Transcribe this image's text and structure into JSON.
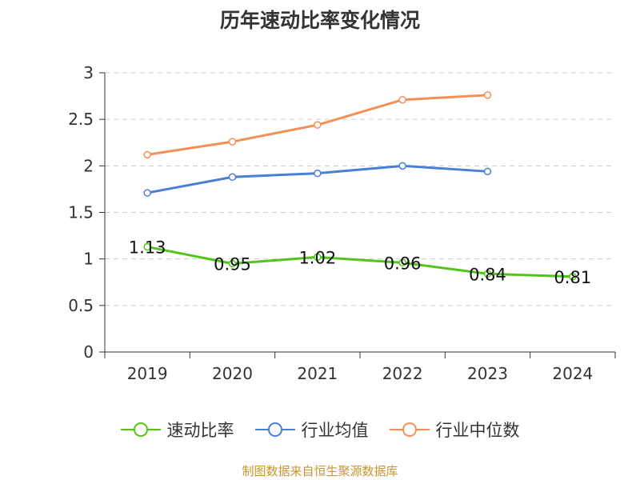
{
  "chart_data": {
    "type": "line",
    "title": "历年速动比率变化情况",
    "categories": [
      "2019",
      "2020",
      "2021",
      "2022",
      "2023",
      "2024"
    ],
    "ylim": [
      0,
      3
    ],
    "yticks": [
      "0",
      "0.5",
      "1",
      "1.5",
      "2",
      "2.5",
      "3"
    ],
    "grid": true,
    "legend_position": "bottom",
    "series": [
      {
        "name": "速动比率",
        "color": "#52c41a",
        "values": [
          1.13,
          0.95,
          1.02,
          0.96,
          0.84,
          0.81
        ],
        "data_labels": [
          "1.13",
          "0.95",
          "1.02",
          "0.96",
          "0.84",
          "0.81"
        ]
      },
      {
        "name": "行业均值",
        "color": "#4a7fd4",
        "values": [
          1.71,
          1.88,
          1.92,
          2.0,
          1.94,
          null
        ]
      },
      {
        "name": "行业中位数",
        "color": "#f39058",
        "values": [
          2.12,
          2.26,
          2.44,
          2.71,
          2.76,
          null
        ]
      }
    ]
  },
  "footer": {
    "source": "制图数据来自恒生聚源数据库"
  }
}
